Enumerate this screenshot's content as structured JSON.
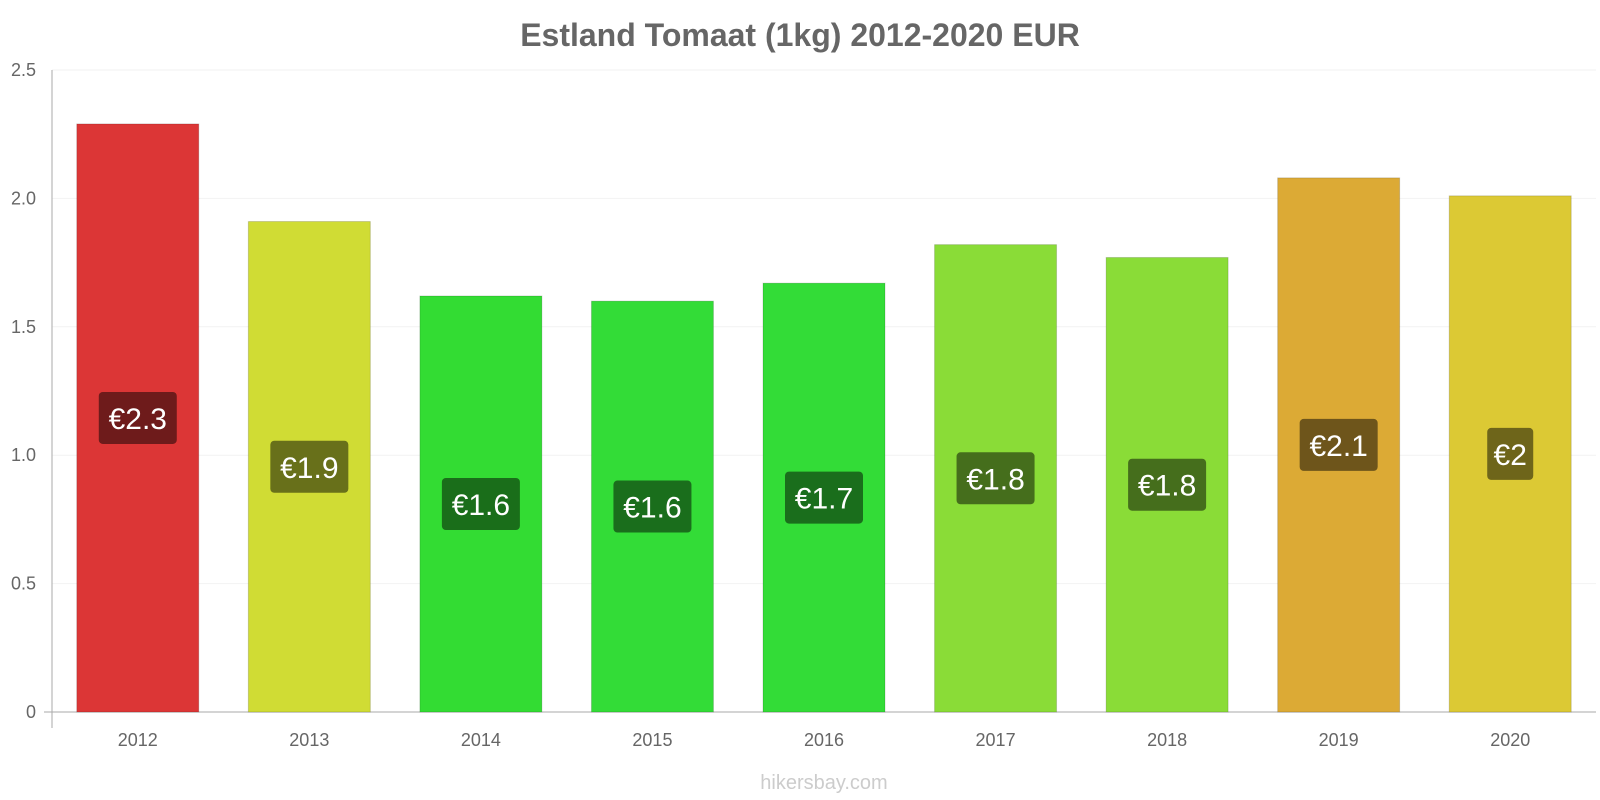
{
  "chart_data": {
    "type": "bar",
    "title": "Estland Tomaat (1kg) 2012-2020 EUR",
    "categories": [
      "2012",
      "2013",
      "2014",
      "2015",
      "2016",
      "2017",
      "2018",
      "2019",
      "2020"
    ],
    "values": [
      2.29,
      1.91,
      1.62,
      1.6,
      1.67,
      1.82,
      1.77,
      2.08,
      2.01
    ],
    "data_labels": [
      "€2.3",
      "€1.9",
      "€1.6",
      "€1.6",
      "€1.7",
      "€1.8",
      "€1.8",
      "€2.1",
      "€2"
    ],
    "bar_colors": [
      "#dc3636",
      "#d0dc34",
      "#33dc33",
      "#33dc37",
      "#33dc37",
      "#8adc37",
      "#8adc37",
      "#dcaa35",
      "#dcc934"
    ],
    "label_bg_colors": [
      "#6e1b1b",
      "#68701a",
      "#1a6e1a",
      "#1a6e1c",
      "#1a6e1c",
      "#456e1c",
      "#456e1c",
      "#6e551b",
      "#6e651a"
    ],
    "yticks": [
      "0",
      "0.5",
      "1.0",
      "1.5",
      "2.0",
      "2.5"
    ],
    "ylim": [
      0,
      2.5
    ],
    "xlabel": "",
    "ylabel": "",
    "grid": true,
    "legend": "none"
  },
  "watermark": "hikersbay.com"
}
